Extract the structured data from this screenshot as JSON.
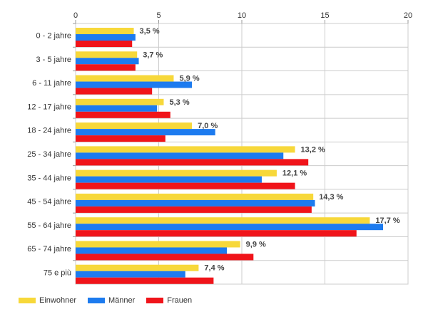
{
  "chart_data": {
    "type": "bar",
    "orientation": "horizontal",
    "categories": [
      "0 - 2 jahre",
      "3 - 5 jahre",
      "6 - 11 jahre",
      "12 - 17 jahre",
      "18 - 24 jahre",
      "25 - 34 jahre",
      "35 - 44 jahre",
      "45 - 54 jahre",
      "55 - 64 jahre",
      "65 - 74 jahre",
      "75 e più"
    ],
    "series": [
      {
        "name": "Einwohner",
        "color": "#f7d83a",
        "values": [
          3.5,
          3.7,
          5.9,
          5.3,
          7.0,
          13.2,
          12.1,
          14.3,
          17.7,
          9.9,
          7.4
        ]
      },
      {
        "name": "Männer",
        "color": "#1d7bef",
        "values": [
          3.6,
          3.8,
          7.0,
          4.9,
          8.4,
          12.5,
          11.2,
          14.4,
          18.5,
          9.1,
          6.6
        ]
      },
      {
        "name": "Frauen",
        "color": "#f0141a",
        "values": [
          3.4,
          3.6,
          4.6,
          5.7,
          5.4,
          14.0,
          13.2,
          14.2,
          16.9,
          10.7,
          8.3
        ]
      }
    ],
    "data_labels": [
      "3,5 %",
      "3,7 %",
      "5,9 %",
      "5,3 %",
      "7,0 %",
      "13,2 %",
      "12,1 %",
      "14,3 %",
      "17,7 %",
      "9,9 %",
      "7,4 %"
    ],
    "xlim": [
      0,
      20
    ],
    "xticks": [
      0,
      5,
      10,
      15,
      20
    ],
    "xtick_labels": [
      "0",
      "5",
      "10",
      "15",
      "20"
    ],
    "x_axis_position": "top",
    "grid": true,
    "legend_position": "bottom-left",
    "title": "",
    "xlabel": "",
    "ylabel": ""
  }
}
